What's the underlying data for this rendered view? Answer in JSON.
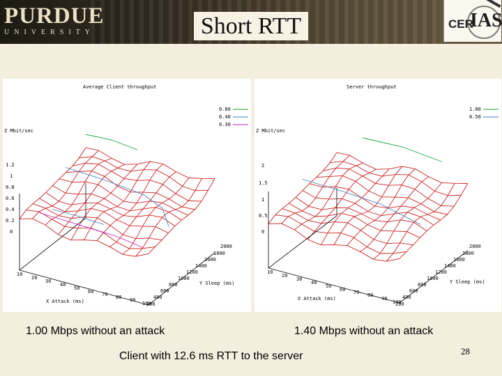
{
  "header": {
    "logo_top": "PURDUE",
    "logo_bottom": "UNIVERSITY",
    "title": "Short RTT",
    "badge_left": "CER",
    "badge_right": "IAS"
  },
  "plots": [
    {
      "title": "Average Client throughput",
      "zlabel": "Z Mbit/sec",
      "ylabel": "Y Sleep (ms)",
      "xlabel": "X Attack (ms)",
      "legend": [
        "0.80",
        "0.40",
        "0.30"
      ],
      "legend_colors": [
        "#1aa03a",
        "#3a82c8",
        "#c020c0"
      ],
      "z_ticks": [
        "1.2",
        "1",
        "0.8",
        "0.6",
        "0.4",
        "0.2",
        "0"
      ],
      "x_ticks": [
        "10",
        "20",
        "30",
        "40",
        "50",
        "60",
        "70",
        "80",
        "90",
        "100"
      ],
      "y_ticks": [
        "2000",
        "1800",
        "1600",
        "1400",
        "1200",
        "1000",
        "800",
        "600",
        "400",
        "200"
      ]
    },
    {
      "title": "Server throughput",
      "zlabel": "Z Mbit/sec",
      "ylabel": "Y Sleep (ms)",
      "xlabel": "X Attack (ms)",
      "legend": [
        "1.00",
        "0.50"
      ],
      "legend_colors": [
        "#1aa03a",
        "#3a82c8"
      ],
      "z_ticks": [
        "2",
        "1.5",
        "1",
        "0.5",
        "0"
      ],
      "x_ticks": [
        "10",
        "20",
        "30",
        "40",
        "50",
        "60",
        "70",
        "80",
        "90",
        "100"
      ],
      "y_ticks": [
        "2000",
        "1800",
        "1600",
        "1400",
        "1200",
        "1000",
        "800",
        "600",
        "400",
        "200"
      ]
    }
  ],
  "captions": {
    "left": "1.00 Mbps without an attack",
    "right": "1.40 Mbps without an attack",
    "bottom": "Client with 12.6 ms RTT to the server"
  },
  "page_number": "28"
}
